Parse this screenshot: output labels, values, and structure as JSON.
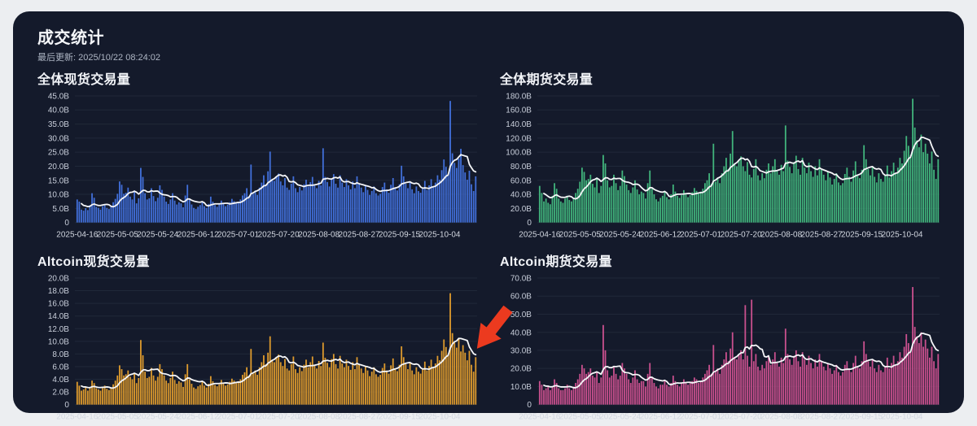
{
  "page": {
    "title": "成交统计",
    "last_updated": "最后更新: 2025/10/22 08:24:02"
  },
  "theme": {
    "card_bg": "#141a2b",
    "page_bg": "#eceef1",
    "grid_color": "#202839",
    "axis_text": "#c9cfdb",
    "date_text": "#d2d7e0",
    "ma_color": "#f5f6f8"
  },
  "annotation": {
    "shape": "arrow-down-left",
    "color": "#ec3a1f"
  },
  "x_axis": {
    "tick_labels": [
      "2025-04-16",
      "2025-05-05",
      "2025-05-24",
      "2025-06-12",
      "2025-07-01",
      "2025-07-20",
      "2025-08-08",
      "2025-08-27",
      "2025-09-15",
      "2025-10-04"
    ],
    "tick_indices": [
      0,
      19,
      38,
      57,
      76,
      95,
      114,
      133,
      152,
      171
    ]
  },
  "ma_window": 9,
  "chart_data": [
    {
      "type": "bar",
      "title": "全体现货交易量",
      "bar_color": "#416fd9",
      "y_max": 45,
      "y_step": 5,
      "y_ticks": [
        "0",
        "5.0B",
        "10.0B",
        "15.0B",
        "20.0B",
        "25.0B",
        "30.0B",
        "35.0B",
        "40.0B",
        "45.0B"
      ],
      "legend": "daily volume with white moving-average line",
      "values": [
        8.2,
        7.4,
        4.6,
        4.2,
        5.1,
        4.4,
        6.2,
        10.4,
        8.8,
        5.6,
        5.2,
        4.6,
        5.8,
        6.4,
        5.2,
        4.8,
        5.6,
        7.2,
        8.4,
        10.2,
        14.6,
        13.4,
        10.2,
        10.6,
        12.4,
        9.2,
        8.2,
        11.4,
        6.8,
        8.6,
        19.4,
        16.2,
        10.4,
        8.2,
        8.6,
        12.2,
        9.4,
        7.6,
        8.8,
        13.2,
        11.6,
        9.2,
        7.4,
        6.6,
        8.2,
        10.4,
        7.8,
        6.4,
        7.2,
        6.8,
        5.4,
        9.6,
        13.4,
        8.2,
        6.4,
        5.2,
        4.8,
        5.6,
        6.2,
        7.4,
        5.8,
        5.2,
        6.6,
        9.2,
        7.4,
        6.2,
        5.6,
        6.4,
        7.8,
        6.6,
        5.8,
        6.4,
        7.2,
        8.4,
        7.6,
        6.8,
        7.4,
        8.2,
        9.6,
        10.4,
        12.2,
        9.4,
        20.6,
        10.2,
        11.4,
        9.8,
        12.4,
        14.2,
        16.8,
        13.6,
        18.2,
        25.2,
        15.4,
        14.8,
        16.2,
        17.4,
        14.6,
        13.2,
        15.8,
        12.4,
        11.6,
        13.8,
        16.4,
        12.2,
        10.8,
        12.6,
        11.4,
        13.6,
        15.2,
        12.8,
        14.4,
        16.2,
        13.4,
        12.2,
        14.8,
        13.2,
        26.4,
        16.2,
        14.4,
        12.8,
        15.6,
        17.2,
        13.8,
        12.4,
        16.8,
        14.2,
        12.6,
        15.4,
        13.2,
        11.8,
        14.6,
        12.2,
        16.4,
        13.6,
        12.4,
        10.8,
        13.2,
        11.6,
        9.8,
        11.2,
        12.8,
        10.4,
        9.6,
        10.2,
        12.6,
        14.2,
        11.8,
        10.6,
        13.4,
        15.8,
        12.2,
        11.4,
        13.6,
        20.2,
        16.4,
        13.8,
        12.2,
        14.6,
        11.8,
        10.4,
        12.8,
        11.2,
        10.6,
        12.4,
        14.8,
        11.6,
        13.2,
        15.4,
        12.6,
        14.2,
        16.8,
        15.2,
        18.6,
        22.4,
        19.8,
        17.4,
        43.2,
        24.6,
        21.2,
        19.4,
        22.8,
        26.2,
        20.4,
        17.8,
        15.2,
        18.4,
        13.6,
        11.2,
        16.4
      ]
    },
    {
      "type": "bar",
      "title": "全体期货交易量",
      "bar_color": "#41b47c",
      "y_max": 180,
      "y_step": 20,
      "y_ticks": [
        "0",
        "20.0B",
        "40.0B",
        "60.0B",
        "80.0B",
        "100.0B",
        "120.0B",
        "140.0B",
        "160.0B",
        "180.0B"
      ],
      "legend": "daily volume with white moving-average line",
      "values": [
        52,
        42,
        30,
        34,
        28,
        26,
        38,
        56,
        48,
        34,
        30,
        28,
        34,
        38,
        32,
        30,
        34,
        42,
        48,
        58,
        78,
        72,
        60,
        62,
        68,
        55,
        50,
        64,
        42,
        52,
        96,
        84,
        60,
        50,
        52,
        68,
        56,
        46,
        52,
        74,
        66,
        54,
        46,
        42,
        50,
        60,
        47,
        40,
        44,
        42,
        34,
        56,
        74,
        48,
        40,
        33,
        30,
        35,
        38,
        44,
        36,
        33,
        40,
        54,
        44,
        38,
        35,
        39,
        46,
        40,
        36,
        39,
        43,
        49,
        45,
        41,
        44,
        48,
        56,
        60,
        70,
        55,
        112,
        58,
        64,
        56,
        70,
        80,
        92,
        76,
        98,
        130,
        84,
        80,
        88,
        94,
        80,
        73,
        86,
        68,
        64,
        76,
        90,
        67,
        60,
        70,
        63,
        75,
        84,
        70,
        80,
        90,
        74,
        68,
        82,
        73,
        138,
        88,
        79,
        70,
        86,
        95,
        76,
        68,
        92,
        78,
        70,
        85,
        73,
        65,
        80,
        67,
        90,
        75,
        68,
        60,
        73,
        64,
        54,
        62,
        70,
        57,
        53,
        56,
        69,
        78,
        65,
        58,
        74,
        87,
        67,
        63,
        75,
        110,
        90,
        76,
        67,
        80,
        65,
        57,
        70,
        62,
        58,
        68,
        81,
        64,
        73,
        85,
        69,
        78,
        92,
        84,
        102,
        123,
        109,
        96,
        176,
        135,
        117,
        107,
        125,
        100,
        112,
        98,
        84,
        101,
        75,
        62,
        90
      ]
    },
    {
      "type": "bar",
      "title": "Altcoin现货交易量",
      "bar_color": "#dd9a2d",
      "y_max": 20,
      "y_step": 2,
      "y_ticks": [
        "0",
        "2.0B",
        "4.0B",
        "6.0B",
        "8.0B",
        "10.0B",
        "12.0B",
        "14.0B",
        "16.0B",
        "18.0B",
        "20.0B"
      ],
      "legend": "daily volume with white moving-average line; red arrow annotation over latest bars",
      "values": [
        3.6,
        3.0,
        2.2,
        2.4,
        2.8,
        2.2,
        2.6,
        3.8,
        3.4,
        2.6,
        2.4,
        2.2,
        2.6,
        3.0,
        2.5,
        2.3,
        2.7,
        3.2,
        3.8,
        4.6,
        6.2,
        5.6,
        4.6,
        4.8,
        5.4,
        4.4,
        4.0,
        5.0,
        3.4,
        4.2,
        10.2,
        7.8,
        5.2,
        4.2,
        4.4,
        5.8,
        4.6,
        3.8,
        4.4,
        6.4,
        5.6,
        4.6,
        3.8,
        3.4,
        4.2,
        5.2,
        3.9,
        3.3,
        3.7,
        3.5,
        2.8,
        4.8,
        6.4,
        4.0,
        3.3,
        2.7,
        2.5,
        2.9,
        3.1,
        3.7,
        3.0,
        2.7,
        3.3,
        4.5,
        3.7,
        3.1,
        2.9,
        3.2,
        3.9,
        3.3,
        3.0,
        3.2,
        3.6,
        4.1,
        3.8,
        3.4,
        3.7,
        4.0,
        4.7,
        5.1,
        5.9,
        4.6,
        8.8,
        4.9,
        5.4,
        4.7,
        5.9,
        6.7,
        7.8,
        6.4,
        8.2,
        10.8,
        7.1,
        6.7,
        7.4,
        7.9,
        6.7,
        6.1,
        7.2,
        5.7,
        5.4,
        6.4,
        7.6,
        5.6,
        5.0,
        5.9,
        5.3,
        6.3,
        7.1,
        5.9,
        6.7,
        7.6,
        6.2,
        5.7,
        6.9,
        6.1,
        9.8,
        7.4,
        6.6,
        5.9,
        7.2,
        8.0,
        6.4,
        5.7,
        7.7,
        6.5,
        5.9,
        7.1,
        6.1,
        5.5,
        6.7,
        5.6,
        7.5,
        6.3,
        5.7,
        5.0,
        6.1,
        5.4,
        4.5,
        5.2,
        5.9,
        4.8,
        4.4,
        4.7,
        5.8,
        6.5,
        5.4,
        4.9,
        6.2,
        7.3,
        5.6,
        5.3,
        6.3,
        9.2,
        7.5,
        6.4,
        5.6,
        6.7,
        5.4,
        4.8,
        5.9,
        5.2,
        4.9,
        5.7,
        6.8,
        5.4,
        6.1,
        7.1,
        5.8,
        6.5,
        7.7,
        7.0,
        8.5,
        10.3,
        9.1,
        8.0,
        17.6,
        11.3,
        9.8,
        9.0,
        10.5,
        8.4,
        9.4,
        8.2,
        7.0,
        8.5,
        6.3,
        5.2,
        7.5
      ]
    },
    {
      "type": "bar",
      "title": "Altcoin期货交易量",
      "bar_color": "#c9508e",
      "y_max": 70,
      "y_step": 10,
      "y_ticks": [
        "0",
        "10.0B",
        "20.0B",
        "30.0B",
        "40.0B",
        "50.0B",
        "60.0B",
        "70.0B"
      ],
      "legend": "daily volume with white moving-average line",
      "values": [
        13,
        11,
        8,
        9,
        10,
        8,
        10,
        14,
        12,
        9,
        8,
        8,
        9,
        11,
        9,
        8,
        10,
        12,
        14,
        17,
        22,
        20,
        17,
        18,
        20,
        16,
        15,
        18,
        12,
        15,
        44,
        30,
        19,
        15,
        16,
        21,
        17,
        14,
        16,
        23,
        20,
        17,
        14,
        12,
        15,
        19,
        14,
        12,
        13,
        13,
        10,
        17,
        23,
        15,
        12,
        10,
        9,
        11,
        11,
        13,
        11,
        10,
        12,
        16,
        13,
        11,
        10,
        12,
        14,
        12,
        11,
        12,
        13,
        15,
        14,
        12,
        13,
        15,
        17,
        19,
        22,
        17,
        33,
        18,
        20,
        17,
        22,
        25,
        29,
        24,
        31,
        40,
        26,
        25,
        28,
        30,
        25,
        55,
        27,
        21,
        58,
        24,
        28,
        21,
        19,
        22,
        20,
        24,
        27,
        22,
        25,
        29,
        23,
        21,
        26,
        23,
        42,
        28,
        25,
        22,
        27,
        30,
        24,
        21,
        29,
        25,
        22,
        27,
        23,
        20,
        25,
        21,
        28,
        24,
        21,
        19,
        23,
        20,
        17,
        19,
        22,
        18,
        16,
        18,
        22,
        24,
        20,
        18,
        23,
        27,
        21,
        20,
        24,
        35,
        28,
        24,
        21,
        25,
        20,
        18,
        22,
        19,
        18,
        21,
        26,
        20,
        23,
        27,
        22,
        24,
        29,
        26,
        32,
        39,
        34,
        30,
        65,
        43,
        37,
        34,
        40,
        32,
        36,
        31,
        26,
        32,
        24,
        20,
        28
      ]
    }
  ]
}
